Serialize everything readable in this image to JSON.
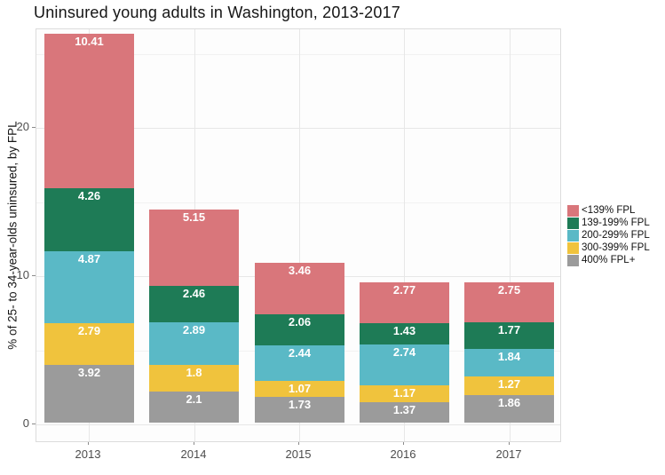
{
  "title": "Uninsured young adults in Washington, 2013-2017",
  "chart_data": {
    "type": "bar",
    "stacked": true,
    "title": "Uninsured young adults in Washington, 2013-2017",
    "xlabel": "",
    "ylabel": "% of 25- to 34-year-olds uninsured, by FPL",
    "categories": [
      "2013",
      "2014",
      "2015",
      "2016",
      "2017"
    ],
    "series": [
      {
        "name": "400% FPL+",
        "color": "#9b9b9b",
        "values": [
          3.92,
          2.1,
          1.73,
          1.37,
          1.86
        ]
      },
      {
        "name": "300-399% FPL",
        "color": "#f0c33d",
        "values": [
          2.79,
          1.8,
          1.07,
          1.17,
          1.27
        ]
      },
      {
        "name": "200-299% FPL",
        "color": "#5ab9c6",
        "values": [
          4.87,
          2.89,
          2.44,
          2.74,
          1.84
        ]
      },
      {
        "name": "139-199% FPL",
        "color": "#1e7b56",
        "values": [
          4.26,
          2.46,
          2.06,
          1.43,
          1.77
        ]
      },
      {
        "name": "<139% FPL",
        "color": "#d9767b",
        "values": [
          10.41,
          5.15,
          3.46,
          2.77,
          2.75
        ]
      }
    ],
    "legend_order": [
      "<139% FPL",
      "139-199% FPL",
      "200-299% FPL",
      "300-399% FPL",
      "400% FPL+"
    ],
    "legend_position": "right",
    "yticks": [
      0,
      10,
      20
    ],
    "ylim": [
      0,
      26.6
    ],
    "grid": true,
    "label_color": "#ffffff"
  }
}
